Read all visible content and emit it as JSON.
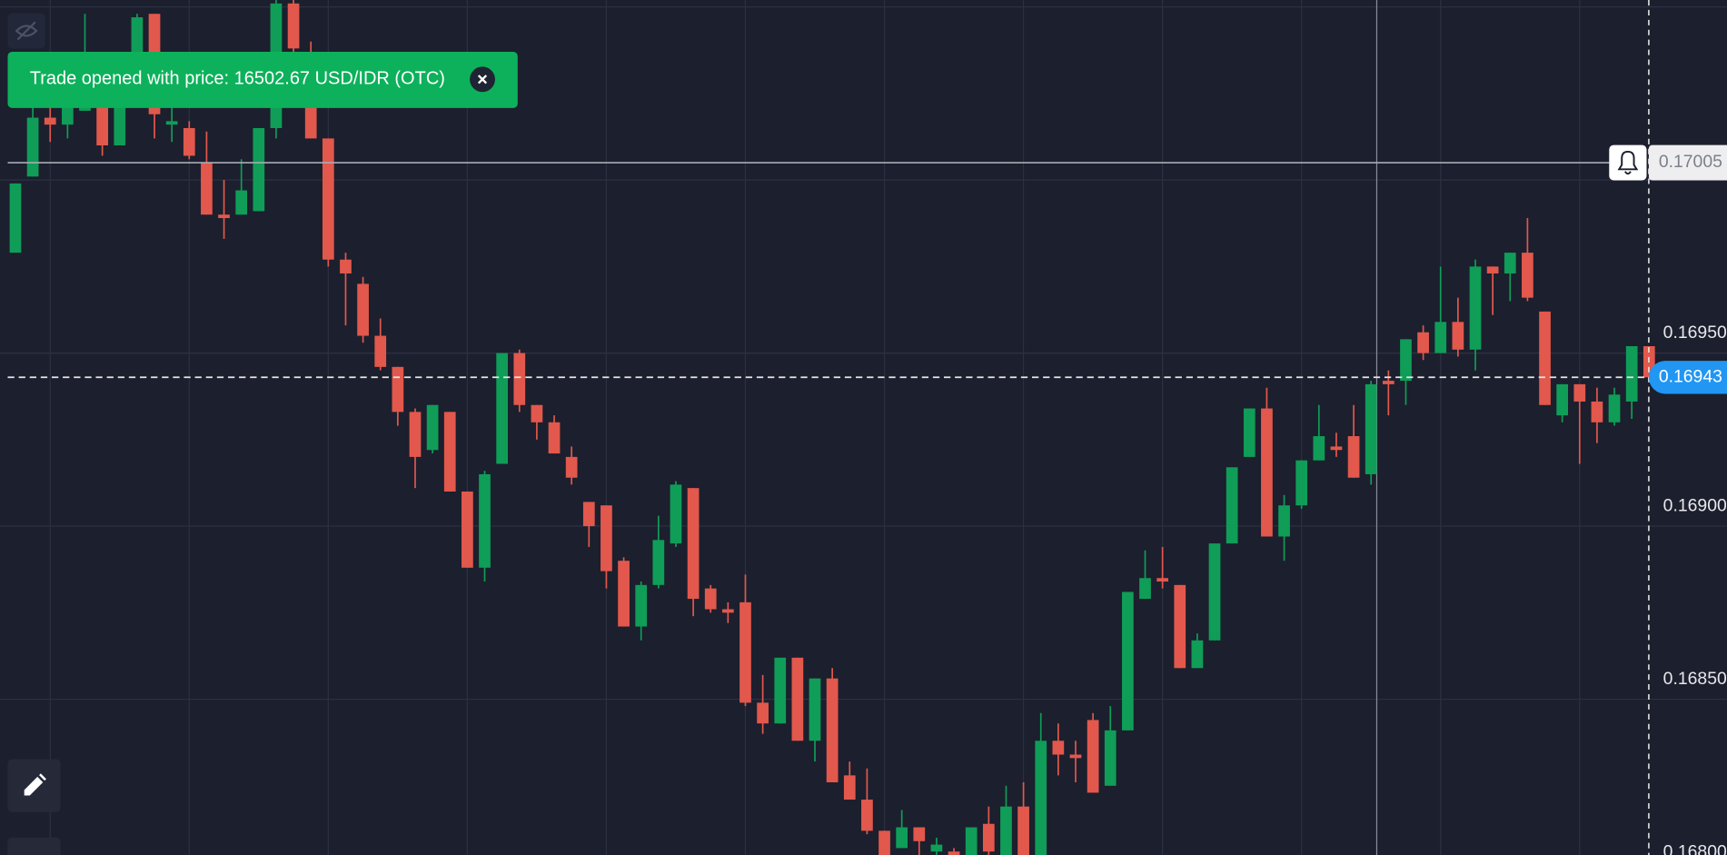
{
  "chart_data": {
    "type": "candlestick",
    "open": [
      0.16979,
      0.17001,
      0.17018,
      0.17016,
      0.1702,
      0.1703,
      0.1701,
      0.1703,
      0.17048,
      0.17016,
      0.17015,
      0.17005,
      0.1699,
      0.1699,
      0.16991,
      0.17015,
      0.17051,
      0.1703,
      0.17012,
      0.16977,
      0.1697,
      0.16955,
      0.16946,
      0.16933,
      0.16922,
      0.16933,
      0.1691,
      0.16888,
      0.16918,
      0.1695,
      0.16935,
      0.1693,
      0.1692,
      0.16907,
      0.16906,
      0.1689,
      0.16871,
      0.16883,
      0.16895,
      0.16911,
      0.16882,
      0.16876,
      0.16878,
      0.16849,
      0.16843,
      0.16862,
      0.16838,
      0.16856,
      0.16828,
      0.16821,
      0.16812,
      0.16807,
      0.16813,
      0.16806,
      0.16806,
      0.16805,
      0.16814,
      0.16805,
      0.16819,
      0.16805,
      0.16838,
      0.16834,
      0.16844,
      0.16825,
      0.16841,
      0.16879,
      0.16885,
      0.16883,
      0.16859,
      0.16867,
      0.16895,
      0.1692,
      0.16934,
      0.16897,
      0.16906,
      0.16919,
      0.16923,
      0.16926,
      0.16915,
      0.16942,
      0.16942,
      0.16956,
      0.1695,
      0.16959,
      0.16951,
      0.16975,
      0.16973,
      0.16979,
      0.16962,
      0.16932,
      0.16941,
      0.16936,
      0.1693,
      0.16936,
      0.16952
    ],
    "high": [
      0.16999,
      0.17022,
      0.17022,
      0.17033,
      0.17048,
      0.17031,
      0.17033,
      0.17048,
      0.17048,
      0.17021,
      0.17017,
      0.17014,
      0.17,
      0.17006,
      0.17015,
      0.17052,
      0.17052,
      0.1704,
      0.17012,
      0.16979,
      0.16972,
      0.1696,
      0.16946,
      0.16934,
      0.16935,
      0.16933,
      0.1691,
      0.16916,
      0.1695,
      0.16951,
      0.16935,
      0.16932,
      0.16923,
      0.16907,
      0.16906,
      0.16891,
      0.16884,
      0.16903,
      0.16913,
      0.16911,
      0.16883,
      0.16878,
      0.16886,
      0.16857,
      0.16862,
      0.16862,
      0.16856,
      0.16859,
      0.16832,
      0.1683,
      0.16812,
      0.16818,
      0.16813,
      0.1681,
      0.16807,
      0.16813,
      0.16819,
      0.16825,
      0.16826,
      0.16846,
      0.16843,
      0.16838,
      0.16846,
      0.16848,
      0.16881,
      0.16893,
      0.16894,
      0.16883,
      0.16869,
      0.16895,
      0.16917,
      0.16934,
      0.1694,
      0.16909,
      0.16919,
      0.16935,
      0.16927,
      0.16935,
      0.16942,
      0.16945,
      0.16954,
      0.16958,
      0.16975,
      0.16966,
      0.16977,
      0.16975,
      0.16979,
      0.16989,
      0.16962,
      0.16941,
      0.16941,
      0.1694,
      0.1694,
      0.16952,
      0.16952
    ],
    "low": [
      0.16979,
      0.17001,
      0.17011,
      0.17012,
      0.1702,
      0.17007,
      0.1701,
      0.1703,
      0.17012,
      0.17011,
      0.17006,
      0.1699,
      0.16983,
      0.1699,
      0.16991,
      0.17012,
      0.17037,
      0.17012,
      0.16975,
      0.16958,
      0.16953,
      0.16945,
      0.16929,
      0.16911,
      0.16921,
      0.1691,
      0.16888,
      0.16884,
      0.16918,
      0.16933,
      0.16925,
      0.16921,
      0.16912,
      0.16894,
      0.16882,
      0.16871,
      0.16867,
      0.16882,
      0.16894,
      0.16874,
      0.16875,
      0.16872,
      0.16848,
      0.1684,
      0.16843,
      0.16838,
      0.16832,
      0.16826,
      0.16821,
      0.16811,
      0.16805,
      0.16807,
      0.16805,
      0.16805,
      0.16805,
      0.16805,
      0.16805,
      0.16805,
      0.16805,
      0.16805,
      0.16828,
      0.16826,
      0.16823,
      0.16825,
      0.16841,
      0.16879,
      0.16882,
      0.16859,
      0.16859,
      0.16867,
      0.16895,
      0.1692,
      0.16897,
      0.1689,
      0.16905,
      0.16919,
      0.1692,
      0.16914,
      0.16912,
      0.16932,
      0.16935,
      0.16948,
      0.1695,
      0.16949,
      0.16945,
      0.16961,
      0.16965,
      0.16965,
      0.16935,
      0.1693,
      0.16918,
      0.16924,
      0.16929,
      0.16931,
      0.16943
    ],
    "close": [
      0.16999,
      0.17018,
      0.17016,
      0.1703,
      0.17033,
      0.1701,
      0.1703,
      0.17047,
      0.17019,
      0.17017,
      0.17007,
      0.1699,
      0.16989,
      0.16997,
      0.17015,
      0.17051,
      0.17038,
      0.17012,
      0.16977,
      0.16973,
      0.16955,
      0.16946,
      0.16933,
      0.1692,
      0.16935,
      0.1691,
      0.16888,
      0.16915,
      0.1695,
      0.16935,
      0.1693,
      0.16921,
      0.16914,
      0.169,
      0.16887,
      0.16871,
      0.16883,
      0.16896,
      0.16912,
      0.16879,
      0.16876,
      0.16875,
      0.16849,
      0.16843,
      0.16862,
      0.16838,
      0.16856,
      0.16826,
      0.16821,
      0.16812,
      0.16805,
      0.16813,
      0.16809,
      0.16808,
      0.16805,
      0.16813,
      0.16806,
      0.16819,
      0.16805,
      0.16838,
      0.16834,
      0.16833,
      0.16823,
      0.16841,
      0.16881,
      0.16885,
      0.16884,
      0.16859,
      0.16867,
      0.16895,
      0.16917,
      0.16934,
      0.16897,
      0.16906,
      0.16919,
      0.16926,
      0.16922,
      0.16914,
      0.16941,
      0.16941,
      0.16954,
      0.1695,
      0.16959,
      0.16951,
      0.16975,
      0.16973,
      0.16979,
      0.16966,
      0.16935,
      0.16941,
      0.16936,
      0.1693,
      0.16938,
      0.16952,
      0.16943
    ],
    "up_color": "#0f9d58",
    "down_color": "#e2584c",
    "ylim": [
      0.16805,
      0.17052
    ],
    "yticks": [
      {
        "value": 0.168,
        "label": "0.16800"
      },
      {
        "value": 0.1685,
        "label": "0.16850"
      },
      {
        "value": 0.169,
        "label": "0.16900"
      },
      {
        "value": 0.1695,
        "label": "0.16950"
      },
      {
        "value": 0.17,
        "label": null
      },
      {
        "value": 0.1705,
        "label": null
      }
    ],
    "grid": true,
    "current_price": 0.16943,
    "alert_price": 0.17005
  },
  "ui": {
    "toast": "Trade opened with price: 16502.67 USD/IDR (OTC)"
  }
}
